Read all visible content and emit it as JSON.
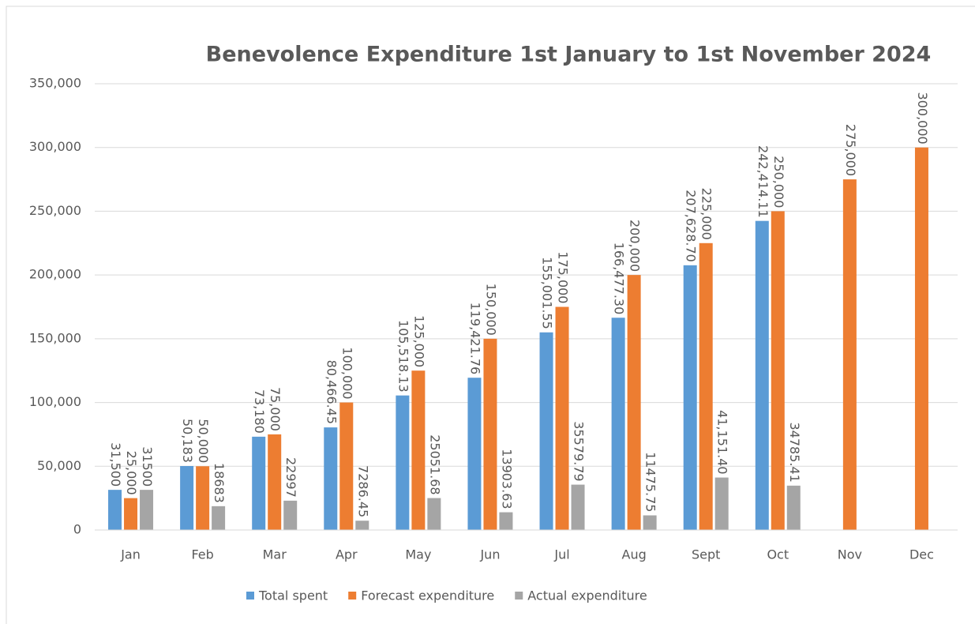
{
  "chart_data": {
    "type": "bar",
    "title": "Benevolence Expenditure 1st January to 1st November 2024",
    "categories": [
      "Jan",
      "Feb",
      "Mar",
      "Apr",
      "May",
      "Jun",
      "Jul",
      "Aug",
      "Sept",
      "Oct",
      "Nov",
      "Dec"
    ],
    "series": [
      {
        "name": "Total spent",
        "color": "#5b9bd5",
        "values": [
          31500,
          50183,
          73180,
          80466.45,
          105518.13,
          119421.76,
          155001.55,
          166477.3,
          207628.7,
          242414.11,
          null,
          null
        ],
        "value_labels": [
          "31,500",
          "50,183",
          "73,180",
          "80,466.45",
          "105,518.13",
          "119,421.76",
          "155,001.55",
          "166,477.30",
          "207,628.70",
          "242,414.11",
          null,
          null
        ]
      },
      {
        "name": "Forecast expenditure",
        "color": "#ed7d31",
        "values": [
          25000,
          50000,
          75000,
          100000,
          125000,
          150000,
          175000,
          200000,
          225000,
          250000,
          275000,
          300000
        ],
        "value_labels": [
          "25,000",
          "50,000",
          "75,000",
          "100,000",
          "125,000",
          "150,000",
          "175,000",
          "200,000",
          "225,000",
          "250,000",
          "275,000",
          "300,000"
        ]
      },
      {
        "name": "Actual expenditure",
        "color": "#a5a5a5",
        "values": [
          31500,
          18683,
          22997,
          7286.45,
          25051.68,
          13903.63,
          35579.79,
          11475.75,
          41151.4,
          34785.41,
          null,
          null
        ],
        "value_labels": [
          "31500",
          "18683",
          "22997",
          "7286.45",
          "25051.68",
          "13903.63",
          "35579.79",
          "11475.75",
          "41,151.40",
          "34785.41",
          null,
          null
        ]
      }
    ],
    "ylim": [
      0,
      350000
    ],
    "yticks": [
      0,
      {
        "value": 50000,
        "label": "50,000"
      },
      {
        "value": 100000,
        "label": "100,000"
      },
      {
        "value": 150000,
        "label": "150,000"
      },
      {
        "value": 200000,
        "label": "200,000"
      },
      {
        "value": 250000,
        "label": "250,000"
      },
      {
        "value": 300000,
        "label": "300,000"
      },
      {
        "value": 350000,
        "label": "350,000"
      }
    ],
    "grid": true,
    "legend": "bottom"
  }
}
